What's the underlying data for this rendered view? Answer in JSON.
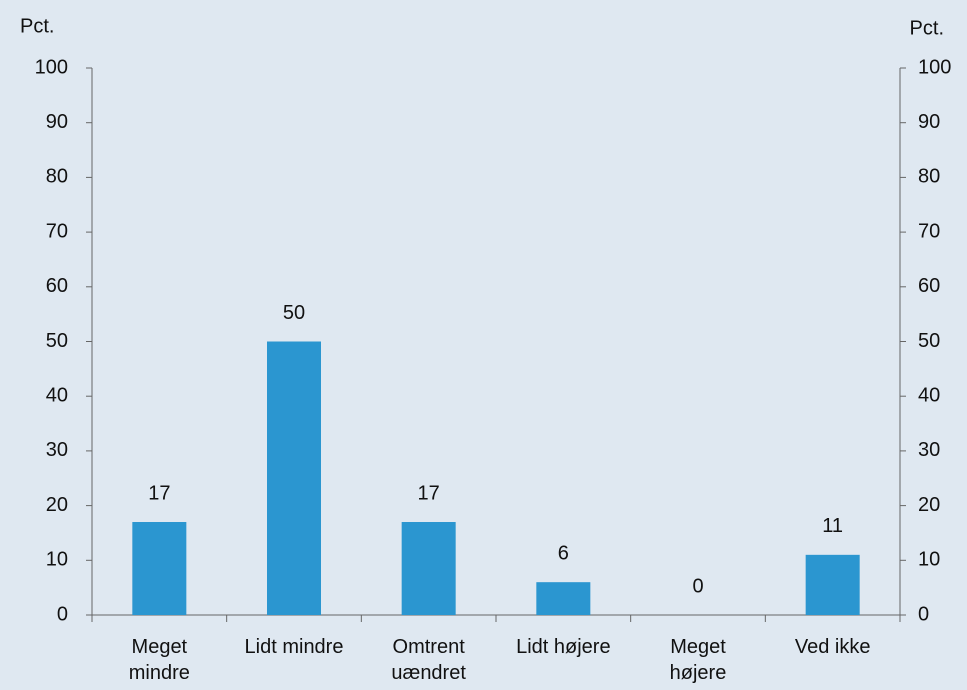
{
  "chart_data": {
    "type": "bar",
    "ylabel": "Pct.",
    "y2label": "Pct.",
    "categories": [
      "Meget\nmindre",
      "Lidt mindre",
      "Omtrent\nuændret",
      "Lidt højere",
      "Meget\nhøjere",
      "Ved ikke"
    ],
    "values": [
      17,
      50,
      17,
      6,
      0,
      11
    ],
    "color": "#2b96d0",
    "ylim": [
      0,
      100
    ],
    "yticks": [
      0,
      10,
      20,
      30,
      40,
      50,
      60,
      70,
      80,
      90,
      100
    ],
    "y2lim": [
      0,
      100
    ],
    "y2ticks": [
      0,
      10,
      20,
      30,
      40,
      50,
      60,
      70,
      80,
      90,
      100
    ],
    "data_labels": true
  }
}
